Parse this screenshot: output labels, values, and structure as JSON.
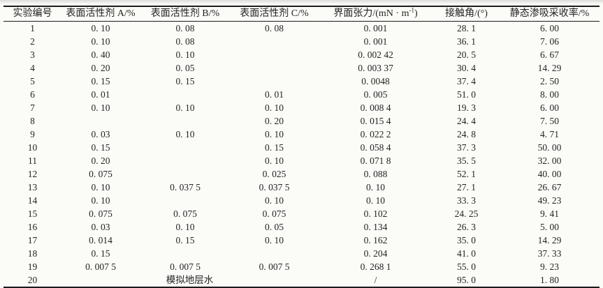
{
  "page": {
    "background": "#fbfbf8",
    "rule_color": "#1b1b1b",
    "text_color": "#242424"
  },
  "table": {
    "columns": {
      "id": "实验编号",
      "surfactant_a": "表面活性剂 A/%",
      "surfactant_b": "表面活性剂 B/%",
      "surfactant_c": "表面活性剂 C/%",
      "tension_prefix": "界面张力/(mN · m",
      "tension_sup": "-1",
      "tension_suffix": ")",
      "contact_angle": "接触角/(°)",
      "recovery": "静态渗吸采收率/%"
    },
    "rows": [
      [
        "1",
        "0. 10",
        "0. 08",
        "0. 08",
        "0. 001",
        "28. 1",
        "6. 00"
      ],
      [
        "2",
        "0. 10",
        "0. 08",
        "",
        "0. 001",
        "36. 1",
        "7. 06"
      ],
      [
        "3",
        "0. 40",
        "0. 10",
        "",
        "0. 002 42",
        "20. 5",
        "6. 67"
      ],
      [
        "4",
        "0. 20",
        "0. 05",
        "",
        "0. 003 37",
        "30. 4",
        "14. 29"
      ],
      [
        "5",
        "0. 15",
        "0. 15",
        "",
        "0. 0048",
        "37. 4",
        "2. 50"
      ],
      [
        "6",
        "0. 01",
        "",
        "0. 01",
        "0. 005",
        "51. 0",
        "8. 00"
      ],
      [
        "7",
        "0. 10",
        "0. 10",
        "0. 10",
        "0. 008 4",
        "19. 3",
        "6. 00"
      ],
      [
        "8",
        "",
        "",
        "0. 20",
        "0. 015 4",
        "24. 4",
        "7. 50"
      ],
      [
        "9",
        "0. 03",
        "0. 10",
        "0. 10",
        "0. 022 2",
        "24. 8",
        "4. 71"
      ],
      [
        "10",
        "0. 15",
        "",
        "0. 15",
        "0. 058 4",
        "37. 3",
        "50. 00"
      ],
      [
        "11",
        "0. 20",
        "",
        "0. 10",
        "0. 071 8",
        "35. 5",
        "32. 00"
      ],
      [
        "12",
        "0. 075",
        "",
        "0. 025",
        "0. 088",
        "52. 1",
        "40. 00"
      ],
      [
        "13",
        "0. 10",
        "0. 037 5",
        "0. 037 5",
        "0. 10",
        "27. 1",
        "26. 67"
      ],
      [
        "14",
        "0. 10",
        "",
        "0. 10",
        "0. 10",
        "33. 3",
        "49. 23"
      ],
      [
        "15",
        "0. 075",
        "0. 075",
        "0. 075",
        "0. 102",
        "24. 25",
        "9. 41"
      ],
      [
        "16",
        "0. 03",
        "0. 10",
        "0. 05",
        "0. 134",
        "26. 3",
        "5. 00"
      ],
      [
        "17",
        "0. 014",
        "0. 15",
        "0. 10",
        "0. 162",
        "35. 0",
        "14. 29"
      ],
      [
        "18",
        "0. 15",
        "",
        "",
        "0. 204",
        "41. 0",
        "37. 33"
      ],
      [
        "19",
        "0. 007 5",
        "0. 007 5",
        "0. 007 5",
        "0. 268 1",
        "55. 0",
        "9. 23"
      ],
      [
        "20",
        {
          "text": "模拟地层水",
          "colspan": 3
        },
        "/",
        "95. 0",
        "1. 80"
      ]
    ]
  }
}
